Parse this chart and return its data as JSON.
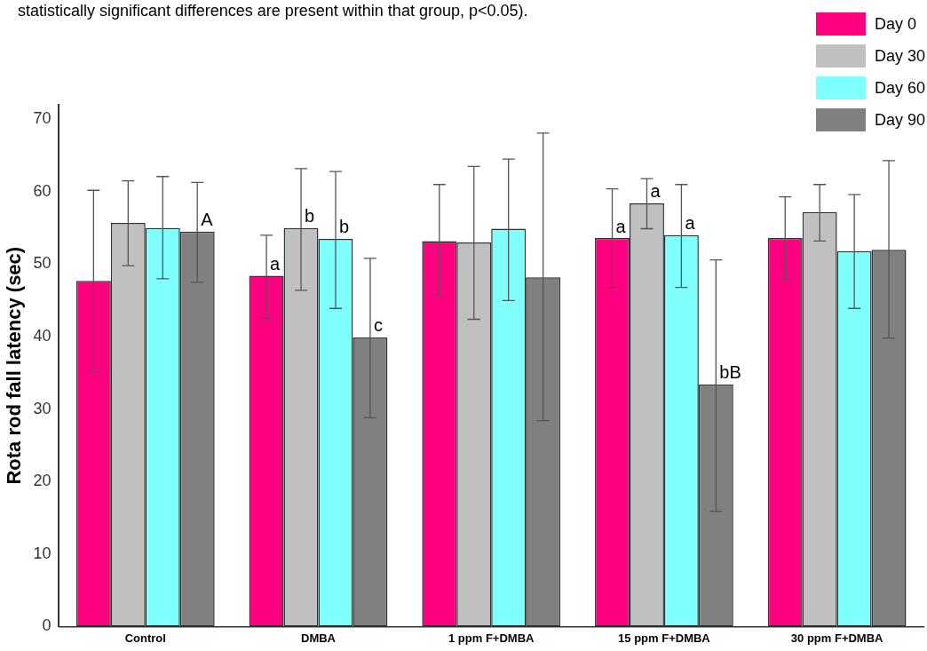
{
  "chart_data": {
    "type": "bar",
    "ylabel": "Rota rod fall latency (sec)",
    "annotations": [
      "statistically significant differences are present within that group, p<0.05)."
    ],
    "categories": [
      "Control",
      "DMBA",
      "1 ppm F+DMBA",
      "15 ppm F+DMBA",
      "30 ppm F+DMBA"
    ],
    "ylim": [
      0,
      72
    ],
    "yticks": [
      0,
      10,
      20,
      30,
      40,
      50,
      60,
      70
    ],
    "grid": false,
    "legend": "top right",
    "series": [
      {
        "name": "Day 0",
        "color": "#ff0080",
        "values": [
          47.7,
          48.4,
          53.2,
          53.6,
          53.6
        ],
        "errors": [
          [
            35.1,
            60.2
          ],
          [
            42.6,
            54.0
          ],
          [
            45.6,
            61.0
          ],
          [
            46.8,
            60.4
          ],
          [
            47.8,
            59.3
          ]
        ],
        "value_labels": [
          null,
          "a",
          null,
          "a",
          null
        ]
      },
      {
        "name": "Day 30",
        "color": "#c0c0c0",
        "values": [
          55.7,
          55.0,
          53.0,
          58.4,
          57.2
        ],
        "errors": [
          [
            49.8,
            61.5
          ],
          [
            46.4,
            63.2
          ],
          [
            42.4,
            63.5
          ],
          [
            54.9,
            61.8
          ],
          [
            53.2,
            61.0
          ]
        ],
        "value_labels": [
          null,
          "b",
          null,
          "a",
          null
        ]
      },
      {
        "name": "Day 60",
        "color": "#80ffff",
        "values": [
          55.0,
          53.5,
          54.9,
          54.0,
          51.8
        ],
        "errors": [
          [
            48.0,
            62.1
          ],
          [
            43.9,
            62.8
          ],
          [
            45.0,
            64.5
          ],
          [
            46.8,
            61.0
          ],
          [
            43.9,
            59.6
          ]
        ],
        "value_labels": [
          null,
          "b",
          null,
          "a",
          null
        ]
      },
      {
        "name": "Day 90",
        "color": "#808080",
        "values": [
          54.5,
          39.9,
          48.2,
          33.4,
          52.0
        ],
        "errors": [
          [
            47.5,
            61.3
          ],
          [
            28.8,
            50.8
          ],
          [
            28.4,
            68.1
          ],
          [
            15.9,
            50.6
          ],
          [
            39.8,
            64.3
          ]
        ],
        "value_labels": [
          "A",
          "c",
          null,
          "bB",
          null
        ]
      }
    ]
  }
}
